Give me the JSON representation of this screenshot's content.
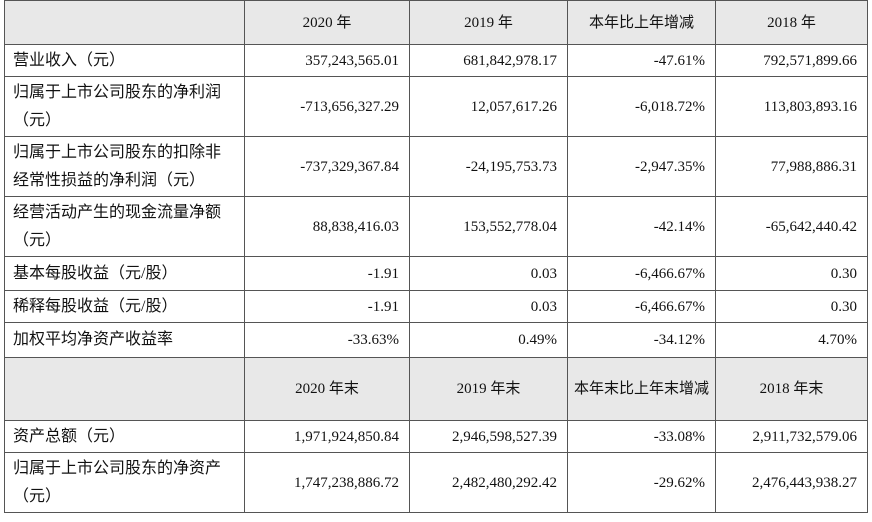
{
  "table": {
    "header": [
      "2020 年",
      "2019 年",
      "本年比上年增减",
      "2018 年"
    ],
    "rows": [
      [
        "营业收入（元）",
        "357,243,565.01",
        "681,842,978.17",
        "-47.61%",
        "792,571,899.66"
      ],
      [
        "归属于上市公司股东的净利润（元）",
        "-713,656,327.29",
        "12,057,617.26",
        "-6,018.72%",
        "113,803,893.16"
      ],
      [
        "归属于上市公司股东的扣除非经常性损益的净利润（元）",
        "-737,329,367.84",
        "-24,195,753.73",
        "-2,947.35%",
        "77,988,886.31"
      ],
      [
        "经营活动产生的现金流量净额（元）",
        "88,838,416.03",
        "153,552,778.04",
        "-42.14%",
        "-65,642,440.42"
      ],
      [
        "基本每股收益（元/股）",
        "-1.91",
        "0.03",
        "-6,466.67%",
        "0.30"
      ],
      [
        "稀释每股收益（元/股）",
        "-1.91",
        "0.03",
        "-6,466.67%",
        "0.30"
      ],
      [
        "加权平均净资产收益率",
        "-33.63%",
        "0.49%",
        "-34.12%",
        "4.70%"
      ]
    ],
    "header2": [
      "2020 年末",
      "2019 年末",
      "本年末比上年末增减",
      "2018 年末"
    ],
    "rows2": [
      [
        "资产总额（元）",
        "1,971,924,850.84",
        "2,946,598,527.39",
        "-33.08%",
        "2,911,732,579.06"
      ],
      [
        "归属于上市公司股东的净资产（元）",
        "1,747,238,886.72",
        "2,482,480,292.42",
        "-29.62%",
        "2,476,443,938.27"
      ]
    ]
  }
}
